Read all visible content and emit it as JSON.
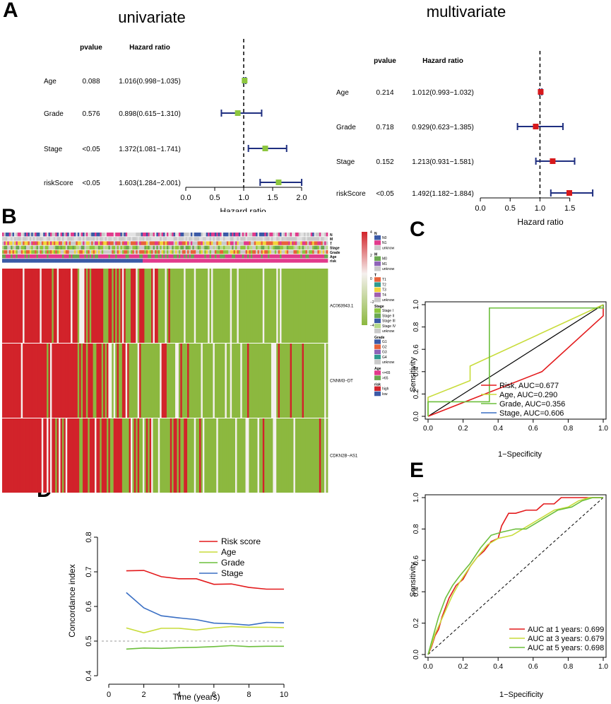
{
  "panel_labels": {
    "a": "A",
    "b": "B",
    "c": "C",
    "d": "D",
    "e": "E"
  },
  "colors": {
    "square_green": "#8dc63f",
    "square_red": "#d7191c",
    "ci_navy": "#1f2f80",
    "heat_red": "#d2232a",
    "heat_green": "#8cb83f",
    "heat_white": "#f5f0ee",
    "risk_red": "#e31a1c",
    "age_yellow": "#c8dc3a",
    "grade_green": "#6cbf3c",
    "stage_blue": "#3a6fc4",
    "cat_blue": "#3b5aa7",
    "cat_pink": "#e23a8c",
    "cat_gray": "#c9c9c9",
    "cat_green": "#6aa84f"
  },
  "chart_data": [
    {
      "type": "forest",
      "id": "univariate",
      "title": "univariate",
      "col_pvalue": "pvalue",
      "col_hr": "Hazard ratio",
      "xlabel": "Hazard ratio",
      "xlim": [
        0,
        2
      ],
      "ticks": [
        "0.0",
        "0.5",
        "1.0",
        "1.5",
        "2.0"
      ],
      "tick_values": [
        0,
        0.5,
        1,
        1.5,
        2
      ],
      "ref": 1,
      "rows": [
        {
          "label": "Age",
          "p": "0.088",
          "hr_text": "1.016(0.998−1.035)",
          "hr": 1.016,
          "lo": 0.998,
          "hi": 1.035
        },
        {
          "label": "Grade",
          "p": "0.576",
          "hr_text": "0.898(0.615−1.310)",
          "hr": 0.898,
          "lo": 0.615,
          "hi": 1.31
        },
        {
          "label": "Stage",
          "p": "<0.05",
          "hr_text": "1.372(1.081−1.741)",
          "hr": 1.372,
          "lo": 1.081,
          "hi": 1.741
        },
        {
          "label": "riskScore",
          "p": "<0.05",
          "hr_text": "1.603(1.284−2.001)",
          "hr": 1.603,
          "lo": 1.284,
          "hi": 2.001
        }
      ]
    },
    {
      "type": "forest",
      "id": "multivariate",
      "title": "multivariate",
      "col_pvalue": "pvalue",
      "col_hr": "Hazard ratio",
      "xlabel": "Hazard ratio",
      "xlim": [
        0,
        1.8
      ],
      "ticks": [
        "0.0",
        "0.5",
        "1.0",
        "1.5"
      ],
      "tick_values": [
        0,
        0.5,
        1,
        1.5
      ],
      "ref": 1,
      "rows": [
        {
          "label": "Age",
          "p": "0.214",
          "hr_text": "1.012(0.993−1.032)",
          "hr": 1.012,
          "lo": 0.993,
          "hi": 1.032
        },
        {
          "label": "Grade",
          "p": "0.718",
          "hr_text": "0.929(0.623−1.385)",
          "hr": 0.929,
          "lo": 0.623,
          "hi": 1.385
        },
        {
          "label": "Stage",
          "p": "0.152",
          "hr_text": "1.213(0.931−1.581)",
          "hr": 1.213,
          "lo": 0.931,
          "hi": 1.581
        },
        {
          "label": "riskScore",
          "p": "<0.05",
          "hr_text": "1.492(1.182−1.884)",
          "hr": 1.492,
          "lo": 1.182,
          "hi": 1.884
        }
      ]
    },
    {
      "type": "heatmap",
      "id": "heatmap",
      "annotation_rows": [
        "N",
        "M",
        "T",
        "Stage",
        "Grade",
        "Age",
        "risk"
      ],
      "genes": [
        "AC063943.1",
        "CNNM3−DT",
        "CDKN2B−AS1"
      ],
      "colorbar_ticks": [
        "4",
        "2",
        "0",
        "−2",
        "−4"
      ],
      "legend_groups": [
        {
          "title": "N",
          "items": [
            {
              "label": "N0",
              "color": "#3b5aa7"
            },
            {
              "label": "N1",
              "color": "#e23a8c"
            },
            {
              "label": "unknow",
              "color": "#c9c9c9"
            }
          ]
        },
        {
          "title": "M",
          "items": [
            {
              "label": "M0",
              "color": "#6aa84f"
            },
            {
              "label": "M1",
              "color": "#8e63b8"
            },
            {
              "label": "unknow",
              "color": "#c9c9c9"
            }
          ]
        },
        {
          "title": "T",
          "items": [
            {
              "label": "T1",
              "color": "#e8623a"
            },
            {
              "label": "T2",
              "color": "#2f9b8f"
            },
            {
              "label": "T3",
              "color": "#f2d43b"
            },
            {
              "label": "T4",
              "color": "#a05fb0"
            },
            {
              "label": "unknow",
              "color": "#c9c9c9"
            }
          ]
        },
        {
          "title": "Stage",
          "items": [
            {
              "label": "Stage I",
              "color": "#8dc63f"
            },
            {
              "label": "Stage II",
              "color": "#6aa84f"
            },
            {
              "label": "Stage III",
              "color": "#3b5aa7"
            },
            {
              "label": "Stage IV",
              "color": "#b5d98a"
            },
            {
              "label": "unknow",
              "color": "#c9c9c9"
            }
          ]
        },
        {
          "title": "Grade",
          "items": [
            {
              "label": "G1",
              "color": "#3b5aa7"
            },
            {
              "label": "G2",
              "color": "#e8623a"
            },
            {
              "label": "G3",
              "color": "#8e63b8"
            },
            {
              "label": "G4",
              "color": "#2f9b8f"
            },
            {
              "label": "unknow",
              "color": "#c9c9c9"
            }
          ]
        },
        {
          "title": "Age",
          "items": [
            {
              "label": "<=65",
              "color": "#e23a8c"
            },
            {
              "label": ">65",
              "color": "#6aa84f"
            }
          ]
        },
        {
          "title": "risk",
          "items": [
            {
              "label": "high",
              "color": "#d2232a"
            },
            {
              "label": "low",
              "color": "#3b5aa7"
            }
          ]
        }
      ]
    },
    {
      "type": "roc",
      "id": "roc_factors",
      "xlabel": "1−Specificity",
      "ylabel": "Sensitivity",
      "ticks": [
        "0.0",
        "0.2",
        "0.4",
        "0.6",
        "0.8",
        "1.0"
      ],
      "series": [
        {
          "name": "Risk",
          "legend": "Risk, AUC=0.677",
          "color": "#e31a1c",
          "points": [
            [
              0,
              0
            ],
            [
              0.65,
              0.4
            ],
            [
              1,
              0.9
            ],
            [
              1,
              1
            ]
          ]
        },
        {
          "name": "Age",
          "legend": "Age, AUC=0.290",
          "color": "#c8dc3a",
          "points": [
            [
              0,
              0
            ],
            [
              0,
              0.17
            ],
            [
              0.24,
              0.32
            ],
            [
              0.24,
              0.45
            ],
            [
              1,
              1
            ]
          ]
        },
        {
          "name": "Grade",
          "legend": "Grade, AUC=0.356",
          "color": "#6cbf3c",
          "points": [
            [
              0,
              0
            ],
            [
              0,
              0.13
            ],
            [
              0.35,
              0.13
            ],
            [
              0.35,
              0.97
            ],
            [
              1,
              0.97
            ],
            [
              1,
              1
            ]
          ]
        },
        {
          "name": "Stage",
          "legend": "Stage, AUC=0.606",
          "color": "#3a6fc4",
          "points": []
        }
      ]
    },
    {
      "type": "line",
      "id": "concordance",
      "xlabel": "Time (years)",
      "ylabel": "Concordance index",
      "xlim": [
        0,
        10
      ],
      "ylim": [
        0.4,
        0.8
      ],
      "xticks": [
        "0",
        "2",
        "4",
        "6",
        "8",
        "10"
      ],
      "yticks": [
        "0.4",
        "0.5",
        "0.6",
        "0.7",
        "0.8"
      ],
      "x": [
        1,
        2,
        3,
        4,
        5,
        6,
        7,
        8,
        9,
        10
      ],
      "series": [
        {
          "name": "Risk score",
          "color": "#e31a1c",
          "values": [
            0.703,
            0.704,
            0.686,
            0.68,
            0.68,
            0.664,
            0.665,
            0.655,
            0.65,
            0.65
          ]
        },
        {
          "name": "Age",
          "color": "#c8dc3a",
          "values": [
            0.538,
            0.524,
            0.537,
            0.537,
            0.532,
            0.538,
            0.542,
            0.54,
            0.54,
            0.539
          ]
        },
        {
          "name": "Grade",
          "color": "#6cbf3c",
          "values": [
            0.477,
            0.48,
            0.479,
            0.481,
            0.482,
            0.484,
            0.487,
            0.484,
            0.485,
            0.485
          ]
        },
        {
          "name": "Stage",
          "color": "#3a6fc4",
          "values": [
            0.64,
            0.596,
            0.573,
            0.567,
            0.562,
            0.552,
            0.55,
            0.546,
            0.554,
            0.553
          ]
        }
      ]
    },
    {
      "type": "roc",
      "id": "roc_time",
      "xlabel": "1−Specificity",
      "ylabel": "Sensitivity",
      "ticks": [
        "0.0",
        "0.2",
        "0.4",
        "0.6",
        "0.8",
        "1.0"
      ],
      "series": [
        {
          "name": "1 year",
          "legend": "AUC at 1 years: 0.699",
          "color": "#e31a1c",
          "points": [
            [
              0,
              0
            ],
            [
              0.02,
              0.05
            ],
            [
              0.04,
              0.12
            ],
            [
              0.06,
              0.16
            ],
            [
              0.08,
              0.24
            ],
            [
              0.1,
              0.3
            ],
            [
              0.12,
              0.36
            ],
            [
              0.16,
              0.44
            ],
            [
              0.2,
              0.48
            ],
            [
              0.24,
              0.56
            ],
            [
              0.28,
              0.62
            ],
            [
              0.32,
              0.66
            ],
            [
              0.36,
              0.72
            ],
            [
              0.4,
              0.74
            ],
            [
              0.42,
              0.82
            ],
            [
              0.46,
              0.9
            ],
            [
              0.5,
              0.9
            ],
            [
              0.56,
              0.92
            ],
            [
              0.62,
              0.92
            ],
            [
              0.66,
              0.96
            ],
            [
              0.72,
              0.96
            ],
            [
              0.76,
              1
            ],
            [
              1,
              1
            ]
          ]
        },
        {
          "name": "3 years",
          "legend": "AUC at 3 years: 0.679",
          "color": "#c8dc3a",
          "points": [
            [
              0,
              0
            ],
            [
              0.02,
              0.06
            ],
            [
              0.04,
              0.13
            ],
            [
              0.06,
              0.18
            ],
            [
              0.1,
              0.28
            ],
            [
              0.14,
              0.38
            ],
            [
              0.18,
              0.46
            ],
            [
              0.24,
              0.56
            ],
            [
              0.28,
              0.62
            ],
            [
              0.34,
              0.7
            ],
            [
              0.4,
              0.74
            ],
            [
              0.48,
              0.76
            ],
            [
              0.54,
              0.8
            ],
            [
              0.6,
              0.84
            ],
            [
              0.66,
              0.88
            ],
            [
              0.72,
              0.92
            ],
            [
              0.8,
              0.94
            ],
            [
              0.86,
              0.98
            ],
            [
              0.92,
              1
            ],
            [
              1,
              1
            ]
          ]
        },
        {
          "name": "5 years",
          "legend": "AUC at 5 years: 0.698",
          "color": "#6cbf3c",
          "points": [
            [
              0,
              0
            ],
            [
              0.02,
              0.08
            ],
            [
              0.04,
              0.16
            ],
            [
              0.06,
              0.24
            ],
            [
              0.1,
              0.36
            ],
            [
              0.14,
              0.44
            ],
            [
              0.18,
              0.5
            ],
            [
              0.24,
              0.58
            ],
            [
              0.3,
              0.68
            ],
            [
              0.36,
              0.76
            ],
            [
              0.42,
              0.78
            ],
            [
              0.5,
              0.8
            ],
            [
              0.56,
              0.8
            ],
            [
              0.62,
              0.84
            ],
            [
              0.68,
              0.88
            ],
            [
              0.74,
              0.92
            ],
            [
              0.82,
              0.94
            ],
            [
              0.88,
              0.98
            ],
            [
              0.94,
              1
            ],
            [
              1,
              1
            ]
          ]
        }
      ]
    }
  ]
}
